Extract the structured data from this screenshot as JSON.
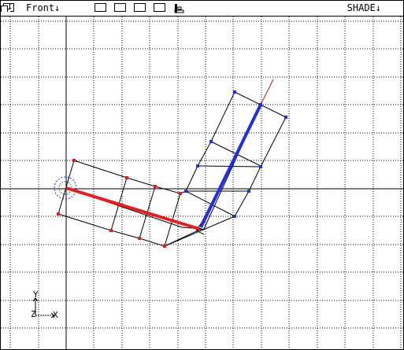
{
  "header": {
    "menu_icon_glyph": "C",
    "view_name": "Front",
    "dropdown_arrow": "↓",
    "draw_mode": "SHADE",
    "layer_buttons": [
      "layer-1",
      "layer-2",
      "layer-3",
      "layer-4"
    ],
    "lock_icon": "lock-icon",
    "maximize_icon": "maximize-icon"
  },
  "axis_gizmo": {
    "x_label": "X",
    "y_label": "Y",
    "z_label": "Z"
  },
  "colors": {
    "grid": "#000000",
    "bone_lower": "#e02020",
    "bone_upper": "#2030e0",
    "lattice": "#000000",
    "lattice_points_lower": "#e02020",
    "lattice_points_upper": "#2030e0",
    "background": "#ffffff"
  }
}
